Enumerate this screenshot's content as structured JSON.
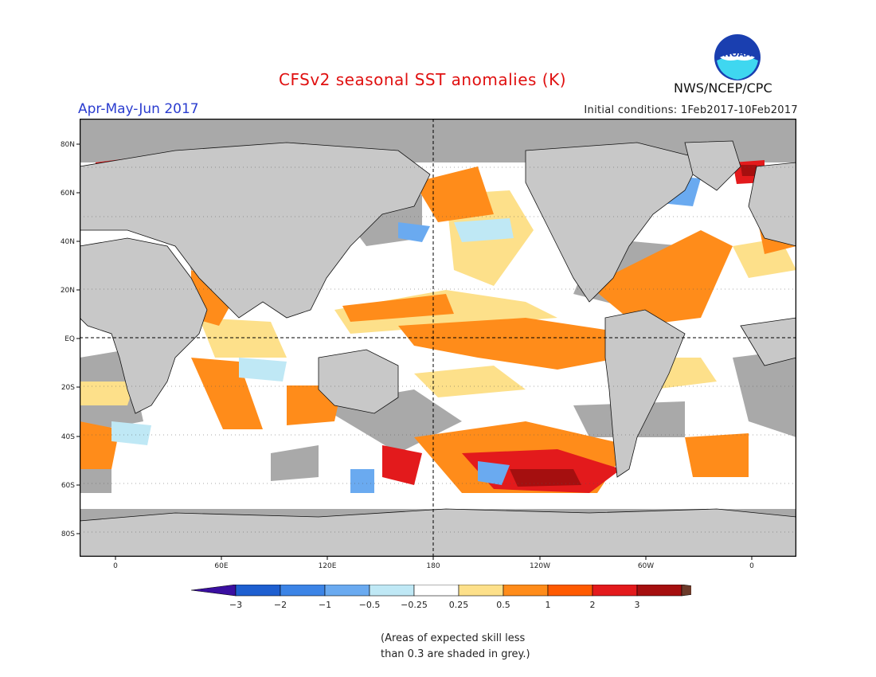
{
  "header": {
    "title": "CFSv2 seasonal SST anomalies (K)",
    "period": "Apr-May-Jun 2017",
    "initial_conditions": "Initial conditions: 1Feb2017-10Feb2017",
    "agency": "NWS/NCEP/CPC",
    "logo_text": "NOAA"
  },
  "map": {
    "lat_labels": [
      "80N",
      "60N",
      "40N",
      "20N",
      "EQ",
      "20S",
      "40S",
      "60S",
      "80S"
    ],
    "lon_labels": [
      "0",
      "60E",
      "120E",
      "180",
      "120W",
      "60W",
      "0"
    ],
    "dashed_reference_lines": [
      "EQ",
      "180"
    ],
    "colors": {
      "land": "#c8c8c8",
      "skill_mask": "#a9a9a9",
      "neutral_ocean": "#ffffff"
    }
  },
  "colorbar": {
    "labels": [
      "-3",
      "-2",
      "-1",
      "-0.5",
      "-0.25",
      "0.25",
      "0.5",
      "1",
      "2",
      "3"
    ],
    "colors": [
      "#3a0fa0",
      "#1e5fd0",
      "#3c84e6",
      "#6aaaf0",
      "#bfe8f5",
      "#ffffff",
      "#fde08a",
      "#ff8c1a",
      "#ff5a00",
      "#e31a1c",
      "#a50f0f",
      "#6b3a2a"
    ]
  },
  "note": {
    "line1": "(Areas of expected skill less",
    "line2": "than 0.3 are shaded in grey.)"
  }
}
